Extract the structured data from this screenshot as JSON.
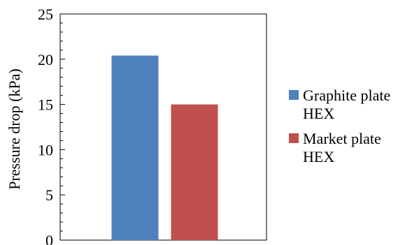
{
  "chart_data": {
    "type": "bar",
    "title": "",
    "xlabel": "",
    "ylabel": "Pressure drop (kPa)",
    "ylim": [
      0,
      25
    ],
    "yticks": [
      0,
      5,
      10,
      15,
      20,
      25
    ],
    "categories": [
      ""
    ],
    "series": [
      {
        "name": "Graphite plate HEX",
        "name_lines": [
          "Graphite plate",
          "HEX"
        ],
        "color": "#4f81bd",
        "values": [
          20.4
        ]
      },
      {
        "name": "Market plate HEX",
        "name_lines": [
          "Market plate",
          "HEX"
        ],
        "color": "#c0504d",
        "values": [
          15.0
        ]
      }
    ],
    "grid": false,
    "legend_position": "right"
  }
}
